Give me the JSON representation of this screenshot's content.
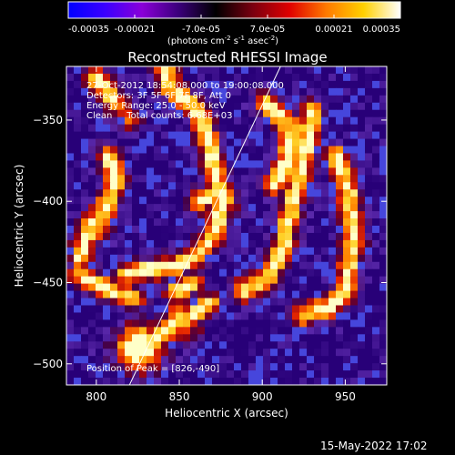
{
  "colorbar": {
    "tick_labels": [
      "-0.00035",
      "-0.00021",
      "-7.0e-05",
      "7.0e-05",
      "0.00021",
      "0.00035"
    ],
    "tick_values": [
      -0.00035,
      -0.00021,
      -7e-05,
      7e-05,
      0.00021,
      0.00035
    ],
    "range": [
      -0.00035,
      0.00035
    ],
    "units_prefix": "(photons cm",
    "units_exp1": "-2",
    "units_mid": " s",
    "units_exp2": "-1",
    "units_mid2": " asec",
    "units_exp3": "-2",
    "units_suffix": ")",
    "colors": [
      "#0000ff",
      "#3b00ff",
      "#8a00d8",
      "#3a007a",
      "#000000",
      "#7a0010",
      "#e00000",
      "#ff7a00",
      "#ffd000",
      "#ffffff"
    ]
  },
  "chart_data": {
    "type": "heatmap",
    "title": "Reconstructed RHESSI Image",
    "xlabel": "Heliocentric X (arcsec)",
    "ylabel": "Heliocentric Y (arcsec)",
    "xlim": [
      782,
      975
    ],
    "ylim": [
      -513,
      -317
    ],
    "x_ticks": [
      800,
      850,
      900,
      950
    ],
    "y_ticks": [
      -350,
      -400,
      -450,
      -500
    ],
    "x_tick_labels": [
      "800",
      "850",
      "900",
      "950"
    ],
    "y_tick_labels": [
      "−350",
      "−400",
      "−450",
      "−500"
    ],
    "annotations": {
      "time_range": "27-Oct-2012 18:54:08.000 to 19:00:08.000",
      "detectors": "Detectors: 3F 5F 6F 7F 8F, Att 0",
      "energy": "Energy Range: 25.0 - 50.0 keV",
      "clean": "Clean     Total counts: 6.68E+03",
      "peak": "Position of Peak = [826,-490]"
    },
    "peak": [
      826,
      -490
    ],
    "limb_line": [
      [
        820,
        -513
      ],
      [
        911,
        -317
      ]
    ]
  },
  "footer": {
    "date": "15-May-2022 17:02"
  }
}
